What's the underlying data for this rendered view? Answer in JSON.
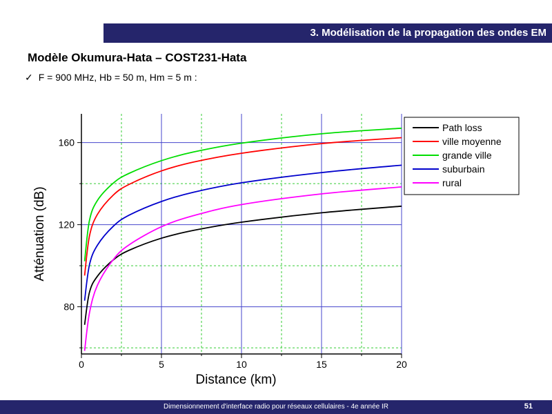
{
  "header": {
    "title": "3. Modélisation de la propagation des ondes EM"
  },
  "slide": {
    "title": "Modèle Okumura-Hata – COST231-Hata",
    "bullet_mark": "✓",
    "bullet": "F = 900 MHz, Hb = 50 m, Hm = 5 m :"
  },
  "footer": {
    "text": "Dimensionnement d'interface radio pour réseaux cellulaires - 4e année IR",
    "page": "51"
  },
  "chart_data": {
    "type": "line",
    "xlabel": "Distance (km)",
    "ylabel": "Atténuation (dB)",
    "xlim": [
      0,
      20
    ],
    "ylim": [
      57,
      174
    ],
    "xticks": [
      0,
      5,
      10,
      15,
      20
    ],
    "yticks": [
      80,
      120,
      160
    ],
    "grid": true,
    "legend_position": "top-right",
    "series": [
      {
        "name": "Path loss",
        "color": "#000000",
        "x": [
          0.2,
          0.5,
          1,
          2,
          3,
          5,
          7,
          10,
          15,
          20
        ],
        "y": [
          71.2,
          87.0,
          94.9,
          102.9,
          107.6,
          113.4,
          117.2,
          121.2,
          125.8,
          129.0
        ]
      },
      {
        "name": "ville moyenne",
        "color": "#ff0000",
        "x": [
          0.2,
          0.5,
          1,
          2,
          3,
          5,
          7,
          10,
          15,
          20
        ],
        "y": [
          95.2,
          114.4,
          125.0,
          134.5,
          139.7,
          146.2,
          150.5,
          154.8,
          159.5,
          162.4
        ]
      },
      {
        "name": "grande ville",
        "color": "#00dd00",
        "x": [
          0.2,
          0.5,
          1,
          2,
          3,
          5,
          7,
          10,
          15,
          20
        ],
        "y": [
          102.2,
          122.0,
          131.8,
          140.3,
          145.1,
          151.2,
          155.4,
          159.7,
          164.3,
          167.0
        ]
      },
      {
        "name": "suburbain",
        "color": "#0000cc",
        "x": [
          0.2,
          0.5,
          1,
          2,
          3,
          5,
          7,
          10,
          15,
          20
        ],
        "y": [
          83.0,
          100.4,
          110.0,
          119.3,
          124.7,
          131.3,
          135.8,
          140.4,
          145.4,
          149.0
        ]
      },
      {
        "name": "rural",
        "color": "#ff00ff",
        "x": [
          0.2,
          0.5,
          1,
          2,
          3,
          5,
          7,
          10,
          15,
          20
        ],
        "y": [
          58.5,
          76.9,
          90.5,
          103.1,
          110.3,
          119.0,
          124.4,
          129.8,
          135.0,
          138.4
        ]
      }
    ]
  }
}
